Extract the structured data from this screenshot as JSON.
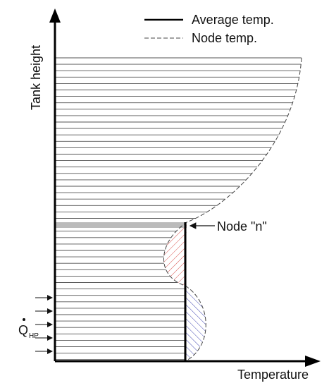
{
  "legend": {
    "average": "Average temp.",
    "node": "Node temp."
  },
  "axes": {
    "y_label": "Tank height",
    "x_label": "Temperature"
  },
  "node_label": "Node \"n\"",
  "heat_input": {
    "symbol": "Q",
    "subscript": "HP"
  }
}
